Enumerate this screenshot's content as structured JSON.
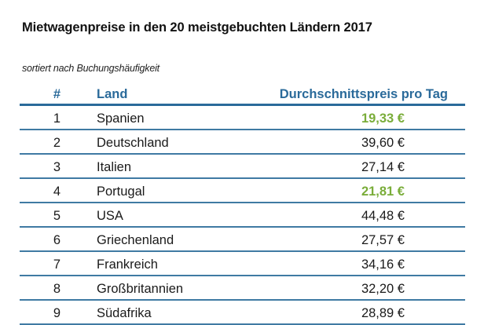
{
  "title": "Mietwagenpreise in den 20 meistgebuchten Ländern 2017",
  "subtitle": "sortiert nach Buchungshäufigkeit",
  "colors": {
    "header": "#2a6a9a",
    "highlight": "#7aad3a",
    "rule": "#3f7aa3"
  },
  "table": {
    "headers": {
      "num": "#",
      "land": "Land",
      "price": "Durchschnittspreis pro Tag"
    },
    "rows": [
      {
        "num": "1",
        "land": "Spanien",
        "price": "19,33 €",
        "highlight": true
      },
      {
        "num": "2",
        "land": "Deutschland",
        "price": "39,60 €",
        "highlight": false
      },
      {
        "num": "3",
        "land": "Italien",
        "price": "27,14 €",
        "highlight": false
      },
      {
        "num": "4",
        "land": "Portugal",
        "price": "21,81 €",
        "highlight": true
      },
      {
        "num": "5",
        "land": "USA",
        "price": "44,48 €",
        "highlight": false
      },
      {
        "num": "6",
        "land": "Griechenland",
        "price": "27,57 €",
        "highlight": false
      },
      {
        "num": "7",
        "land": "Frankreich",
        "price": "34,16 €",
        "highlight": false
      },
      {
        "num": "8",
        "land": "Großbritannien",
        "price": "32,20 €",
        "highlight": false
      },
      {
        "num": "9",
        "land": "Südafrika",
        "price": "28,89 €",
        "highlight": false
      }
    ]
  }
}
